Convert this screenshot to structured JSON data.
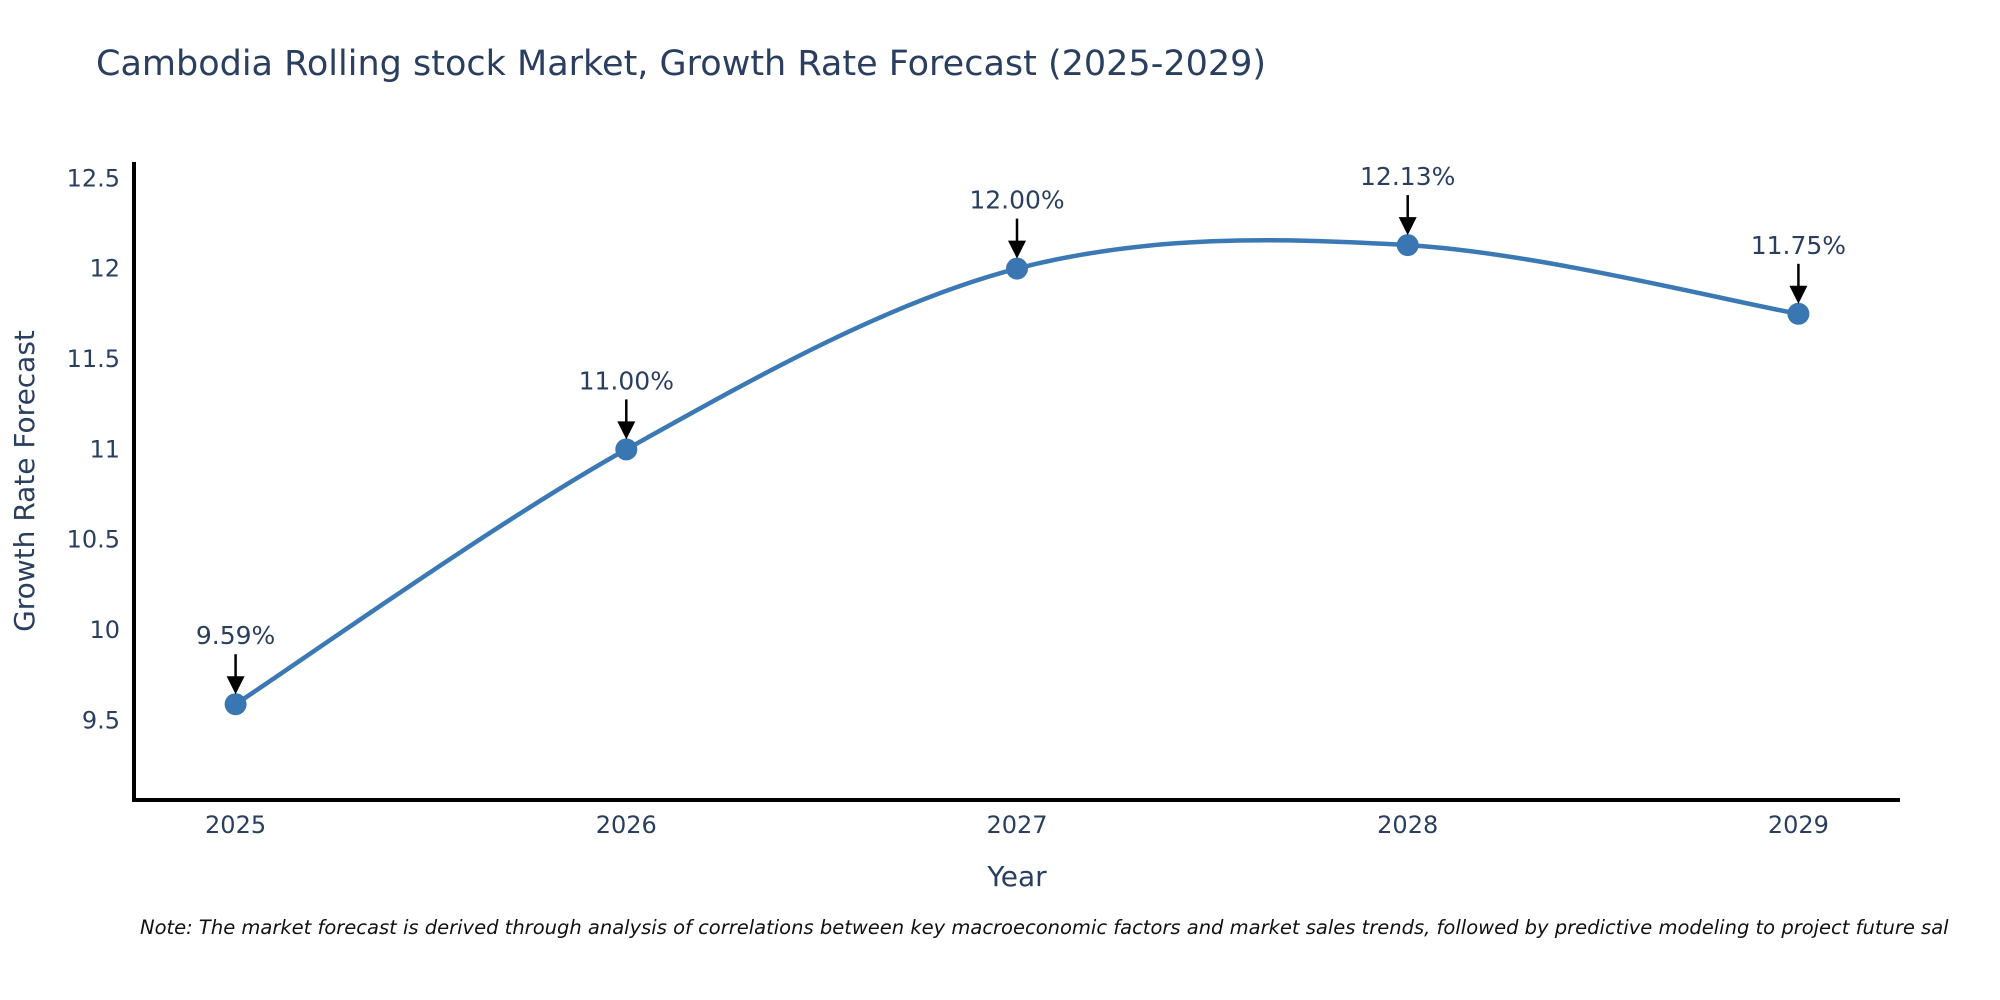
{
  "note": "Note: The market forecast is derived through analysis of correlations between key macroeconomic factors and market sales trends, followed by predictive modeling to project future sal",
  "chart_data": {
    "type": "line",
    "title": "Cambodia Rolling stock Market, Growth Rate Forecast (2025-2029)",
    "xlabel": "Year",
    "ylabel": "Growth Rate Forecast",
    "x": [
      2025,
      2026,
      2027,
      2028,
      2029
    ],
    "y": [
      9.59,
      11.0,
      12.0,
      12.13,
      11.75
    ],
    "point_labels": [
      "9.59%",
      "11.00%",
      "12.00%",
      "12.13%",
      "11.75%"
    ],
    "xtick_labels": [
      "2025",
      "2026",
      "2027",
      "2028",
      "2029"
    ],
    "ytick_values": [
      9.5,
      10,
      10.5,
      11,
      11.5,
      12,
      12.5
    ],
    "ytick_labels": [
      "9.5",
      "10",
      "10.5",
      "11",
      "11.5",
      "12",
      "12.5"
    ],
    "xlim": [
      2024.74,
      2029.26
    ],
    "ylim": [
      9.06,
      12.59
    ],
    "grid": false,
    "legend": "none",
    "line_shape": "spline",
    "line_color": "#3b79b5",
    "marker_color": "#3a77b2",
    "arrow_color": "#000000",
    "axis_color": "#000000",
    "text_color": "#2a3f5f"
  }
}
